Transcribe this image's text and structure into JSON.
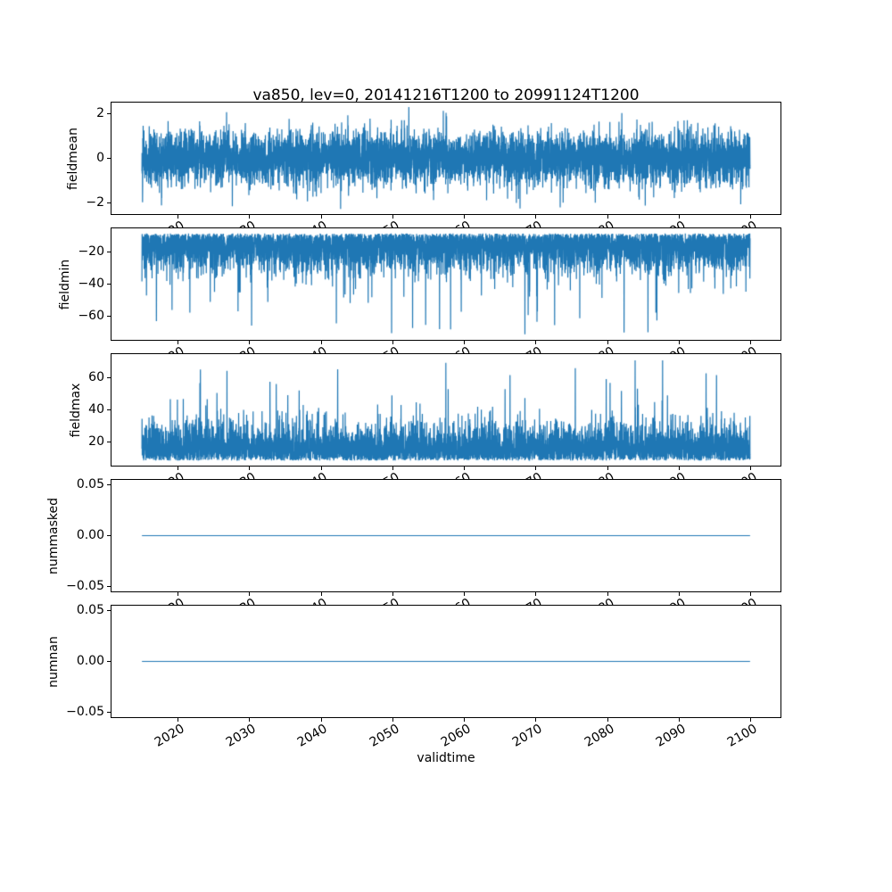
{
  "figure": {
    "title": "va850, lev=0, 20141216T1200 to 20991124T1200",
    "background": "#ffffff",
    "line_color": "#1f77b4",
    "frame_color": "#000000",
    "text_color": "#000000"
  },
  "xaxis": {
    "label": "validtime",
    "start": 2014.96,
    "end": 2099.9,
    "xlim": [
      2010.71,
      2104.15
    ],
    "ticks": [
      2020,
      2030,
      2040,
      2050,
      2060,
      2070,
      2080,
      2090,
      2100
    ],
    "tick_labels": [
      "2020",
      "2030",
      "2040",
      "2050",
      "2060",
      "2070",
      "2080",
      "2090",
      "2100"
    ],
    "tick_rotation_deg": 30
  },
  "chart_data": [
    {
      "type": "line",
      "ylabel": "fieldmean",
      "ylim": [
        -2.5,
        2.5
      ],
      "yticks": [
        {
          "v": 2,
          "label": "2"
        },
        {
          "v": 0,
          "label": "0"
        },
        {
          "v": -2,
          "label": "−2"
        }
      ],
      "series": [
        {
          "name": "fieldmean",
          "kind": "gaussian",
          "mean": 0,
          "std": 0.6,
          "spike_prob": 0.002,
          "spike_min": 1.9,
          "spike_max": 2.3,
          "clip": [
            -2.3,
            2.3
          ],
          "seed": 42,
          "points": 6000
        }
      ]
    },
    {
      "type": "line",
      "ylabel": "fieldmin",
      "ylim": [
        -75.2,
        -4.8
      ],
      "yticks": [
        {
          "v": -20,
          "label": "−20"
        },
        {
          "v": -40,
          "label": "−40"
        },
        {
          "v": -60,
          "label": "−60"
        }
      ],
      "series": [
        {
          "name": "fieldmin",
          "kind": "half_gaussian",
          "direction": -1,
          "base": 8,
          "scale": 11,
          "spike_prob": 0.005,
          "spike_min": 42,
          "spike_max": 72,
          "max": 72,
          "seed": 7,
          "points": 6000
        }
      ]
    },
    {
      "type": "line",
      "ylabel": "fieldmax",
      "ylim": [
        4.8,
        75.2
      ],
      "yticks": [
        {
          "v": 60,
          "label": "60"
        },
        {
          "v": 40,
          "label": "40"
        },
        {
          "v": 20,
          "label": "20"
        }
      ],
      "series": [
        {
          "name": "fieldmax",
          "kind": "half_gaussian",
          "direction": 1,
          "base": 8,
          "scale": 11,
          "spike_prob": 0.005,
          "spike_min": 42,
          "spike_max": 72,
          "max": 72,
          "seed": 13,
          "points": 6000
        }
      ]
    },
    {
      "type": "line",
      "ylabel": "nummasked",
      "ylim": [
        -0.055,
        0.055
      ],
      "yticks": [
        {
          "v": 0.05,
          "label": "0.05"
        },
        {
          "v": 0,
          "label": "0.00"
        },
        {
          "v": -0.05,
          "label": "−0.05"
        }
      ],
      "series": [
        {
          "name": "nummasked",
          "kind": "constant",
          "value": 0,
          "points": 2
        }
      ]
    },
    {
      "type": "line",
      "ylabel": "numnan",
      "ylim": [
        -0.055,
        0.055
      ],
      "yticks": [
        {
          "v": 0.05,
          "label": "0.05"
        },
        {
          "v": 0,
          "label": "0.00"
        },
        {
          "v": -0.05,
          "label": "−0.05"
        }
      ],
      "series": [
        {
          "name": "numnan",
          "kind": "constant",
          "value": 0,
          "points": 2
        }
      ]
    }
  ]
}
